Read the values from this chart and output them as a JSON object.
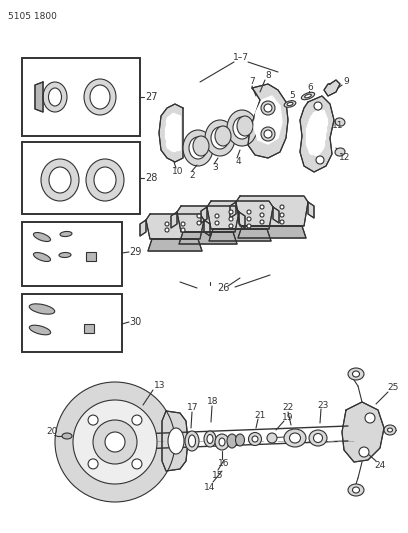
{
  "background_color": "#ffffff",
  "line_color": "#333333",
  "figsize": [
    4.08,
    5.33
  ],
  "dpi": 100,
  "header_text": "5105 1800",
  "gray_light": "#d8d8d8",
  "gray_mid": "#b8b8b8",
  "gray_dark": "#888888"
}
